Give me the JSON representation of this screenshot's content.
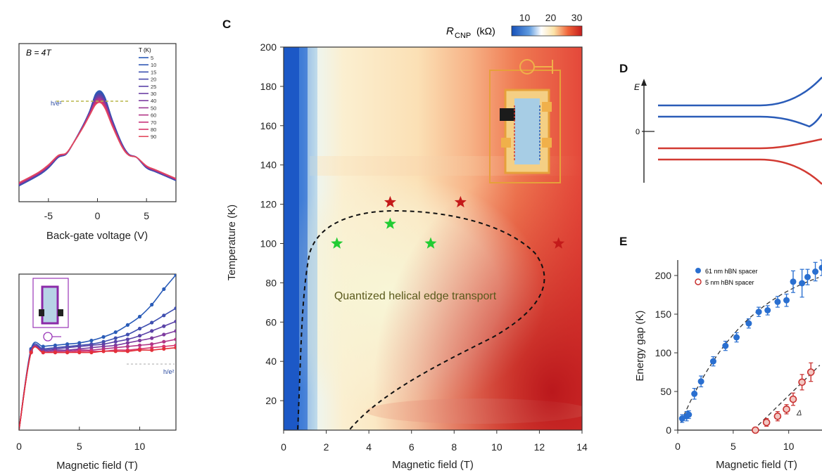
{
  "chart_data": [
    {
      "panel": "",
      "type": "line",
      "annotation": "B = 4T",
      "xlabel": "Back-gate voltage (V)",
      "ylabel": "",
      "xlim": [
        -8,
        8
      ],
      "xticks": [
        "-5",
        "0",
        "5"
      ],
      "quantized_label": "h/e²",
      "legend_title": "T (K)",
      "temperatures": [
        "5",
        "10",
        "15",
        "20",
        "25",
        "30",
        "40",
        "50",
        "60",
        "70",
        "80",
        "90"
      ],
      "colors": [
        "#2a5cb8",
        "#2f57b5",
        "#3a4fb0",
        "#4a48ab",
        "#5a43a8",
        "#6c3fa4",
        "#7d3b9f",
        "#9a3793",
        "#b23486",
        "#c8327a",
        "#d8356c",
        "#e24a5e"
      ],
      "x": [
        -8,
        -6,
        -5,
        -4,
        -3.2,
        -2.5,
        -1.5,
        -0.8,
        -0.2,
        0.3,
        0.8,
        1.5,
        2.5,
        3.2,
        4,
        5,
        6,
        8
      ],
      "series_low_T": [
        0.15,
        0.25,
        0.32,
        0.42,
        0.45,
        0.55,
        0.72,
        0.86,
        1.02,
        1.05,
        0.98,
        0.78,
        0.55,
        0.45,
        0.42,
        0.32,
        0.28,
        0.2
      ],
      "series_high_T": [
        0.18,
        0.28,
        0.35,
        0.44,
        0.46,
        0.55,
        0.7,
        0.82,
        0.92,
        0.94,
        0.88,
        0.72,
        0.52,
        0.44,
        0.42,
        0.34,
        0.3,
        0.22
      ]
    },
    {
      "panel": "",
      "type": "line",
      "xlabel": "Magnetic field (T)",
      "ylabel": "",
      "xlim": [
        0,
        13
      ],
      "xticks": [
        "0",
        "5",
        "10"
      ],
      "quantized_label": "h/e²",
      "x": [
        0,
        1,
        2,
        3,
        4,
        5,
        6,
        7,
        8,
        9,
        10,
        11,
        12,
        13
      ],
      "series": [
        {
          "color": "#2a5cb8",
          "values": [
            0.0,
            0.68,
            0.7,
            0.71,
            0.72,
            0.73,
            0.75,
            0.78,
            0.82,
            0.88,
            0.95,
            1.05,
            1.18,
            1.3
          ]
        },
        {
          "color": "#3f4fb0",
          "values": [
            0.0,
            0.67,
            0.68,
            0.69,
            0.7,
            0.71,
            0.72,
            0.74,
            0.77,
            0.8,
            0.85,
            0.9,
            0.96,
            1.02
          ]
        },
        {
          "color": "#5a43a8",
          "values": [
            0.0,
            0.66,
            0.67,
            0.68,
            0.69,
            0.7,
            0.71,
            0.72,
            0.74,
            0.76,
            0.79,
            0.83,
            0.87,
            0.91
          ]
        },
        {
          "color": "#7d3b9f",
          "values": [
            0.0,
            0.66,
            0.66,
            0.67,
            0.67,
            0.68,
            0.69,
            0.7,
            0.71,
            0.73,
            0.75,
            0.77,
            0.8,
            0.83
          ]
        },
        {
          "color": "#b23486",
          "values": [
            0.0,
            0.65,
            0.65,
            0.66,
            0.66,
            0.67,
            0.67,
            0.68,
            0.69,
            0.7,
            0.71,
            0.72,
            0.74,
            0.76
          ]
        },
        {
          "color": "#d8356c",
          "values": [
            0.0,
            0.65,
            0.65,
            0.65,
            0.65,
            0.66,
            0.66,
            0.66,
            0.67,
            0.67,
            0.68,
            0.69,
            0.7,
            0.71
          ]
        },
        {
          "color": "#e3303a",
          "values": [
            0.0,
            0.65,
            0.65,
            0.65,
            0.65,
            0.65,
            0.65,
            0.66,
            0.66,
            0.66,
            0.67,
            0.67,
            0.68,
            0.69
          ]
        }
      ]
    },
    {
      "panel": "C",
      "type": "heatmap",
      "xlabel": "Magnetic field (T)",
      "ylabel": "Temperature (K)",
      "xlim": [
        0,
        14
      ],
      "ylim": [
        5,
        200
      ],
      "xticks": [
        "0",
        "2",
        "4",
        "6",
        "8",
        "10",
        "12",
        "14"
      ],
      "yticks": [
        "20",
        "40",
        "60",
        "80",
        "100",
        "120",
        "140",
        "160",
        "180",
        "200"
      ],
      "colorbar_label": "R",
      "colorbar_subscript": "CNP",
      "colorbar_unit": "(kΩ)",
      "colorbar_ticks": [
        "10",
        "20",
        "30"
      ],
      "colorbar_range": [
        5,
        32
      ],
      "region_label": "Quantized helical edge transport",
      "green_stars": [
        [
          2.5,
          100
        ],
        [
          5,
          110
        ],
        [
          6.9,
          100
        ]
      ],
      "red_stars": [
        [
          5,
          121
        ],
        [
          8.3,
          121
        ],
        [
          12.9,
          100
        ]
      ],
      "star_colors": {
        "green": "#22cc33",
        "red": "#c41a1a"
      }
    },
    {
      "panel": "D",
      "type": "line",
      "ylabel": "E",
      "zero_label": "0",
      "upper_color": "#2a5cb8",
      "lower_color": "#d23a32"
    },
    {
      "panel": "E",
      "type": "scatter",
      "xlabel": "Magnetic field (T)",
      "ylabel": "Energy gap (K)",
      "xlim": [
        0,
        13
      ],
      "ylim": [
        0,
        220
      ],
      "xticks": [
        "0",
        "5",
        "10"
      ],
      "yticks": [
        "0",
        "50",
        "100",
        "150",
        "200"
      ],
      "annotation": "Δ",
      "series": [
        {
          "name": "61 nm hBN spacer",
          "color": "#2a6fd0",
          "x": [
            0.4,
            0.8,
            1.0,
            1.5,
            2.1,
            3.2,
            4.3,
            5.3,
            6.4,
            7.3,
            8.1,
            9.0,
            9.8,
            10.4,
            11.2,
            11.7,
            12.4,
            13.0
          ],
          "y": [
            15,
            18,
            20,
            47,
            63,
            89,
            109,
            120,
            138,
            153,
            155,
            166,
            168,
            192,
            190,
            198,
            205,
            210
          ],
          "err": [
            5,
            6,
            5,
            7,
            7,
            6,
            6,
            6,
            6,
            6,
            6,
            7,
            8,
            14,
            18,
            10,
            12,
            10
          ]
        },
        {
          "name": "5 nm hBN spacer",
          "color": "#c8302f",
          "x": [
            7.0,
            8.0,
            9.0,
            9.8,
            10.4,
            11.2,
            12.0
          ],
          "y": [
            0,
            10,
            18,
            27,
            40,
            62,
            75
          ],
          "err": [
            3,
            5,
            6,
            6,
            8,
            10,
            12
          ]
        }
      ]
    }
  ]
}
